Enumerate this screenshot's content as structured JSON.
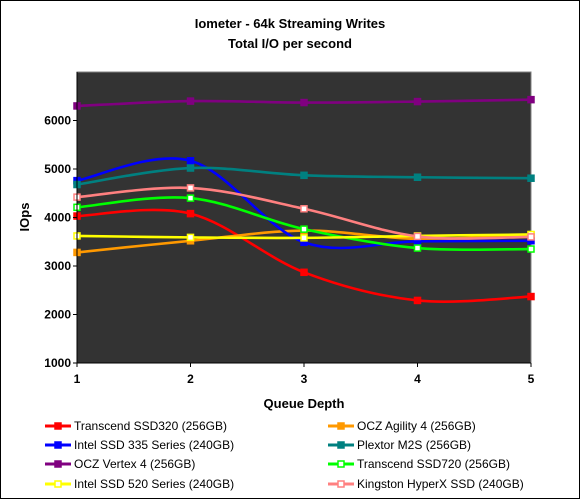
{
  "chart_data": {
    "type": "line",
    "title": "Iometer - 64k Streaming Writes",
    "subtitle": "Total I/O per second",
    "xlabel": "Queue Depth",
    "ylabel": "IOps",
    "x": [
      1,
      2,
      3,
      4,
      5
    ],
    "xlim": [
      1,
      5
    ],
    "ylim": [
      1000,
      7000
    ],
    "yticks": [
      1000,
      2000,
      3000,
      4000,
      5000,
      6000
    ],
    "xticks": [
      1,
      2,
      3,
      4,
      5
    ],
    "plot_background": "#333333",
    "grid": false,
    "legend_placement": "bottom",
    "series": [
      {
        "name": "Transcend SSD320 (256GB)",
        "color": "#ff0000",
        "marker": "filled",
        "values": [
          4030,
          4080,
          2870,
          2290,
          2370
        ]
      },
      {
        "name": "OCZ Agility 4 (256GB)",
        "color": "#ff9900",
        "marker": "filled",
        "values": [
          3280,
          3520,
          3730,
          3560,
          3640
        ]
      },
      {
        "name": "Intel SSD 335 Series (240GB)",
        "color": "#0000ff",
        "marker": "filled",
        "values": [
          4760,
          5170,
          3490,
          3510,
          3520
        ]
      },
      {
        "name": "Plextor M2S (256GB)",
        "color": "#008080",
        "marker": "filled",
        "values": [
          4680,
          5020,
          4870,
          4830,
          4810
        ]
      },
      {
        "name": "OCZ Vertex 4 (256GB)",
        "color": "#800080",
        "marker": "filled",
        "values": [
          6300,
          6400,
          6370,
          6390,
          6430
        ]
      },
      {
        "name": "Transcend SSD720 (256GB)",
        "color": "#00ff00",
        "marker": "hollow",
        "values": [
          4210,
          4400,
          3760,
          3370,
          3350
        ]
      },
      {
        "name": "Intel SSD 520 Series (240GB)",
        "color": "#ffff00",
        "marker": "hollow",
        "values": [
          3620,
          3590,
          3580,
          3620,
          3650
        ]
      },
      {
        "name": "Kingston HyperX SSD (240GB)",
        "color": "#ff8080",
        "marker": "hollow",
        "values": [
          4420,
          4610,
          4180,
          3610,
          3600
        ]
      }
    ]
  }
}
